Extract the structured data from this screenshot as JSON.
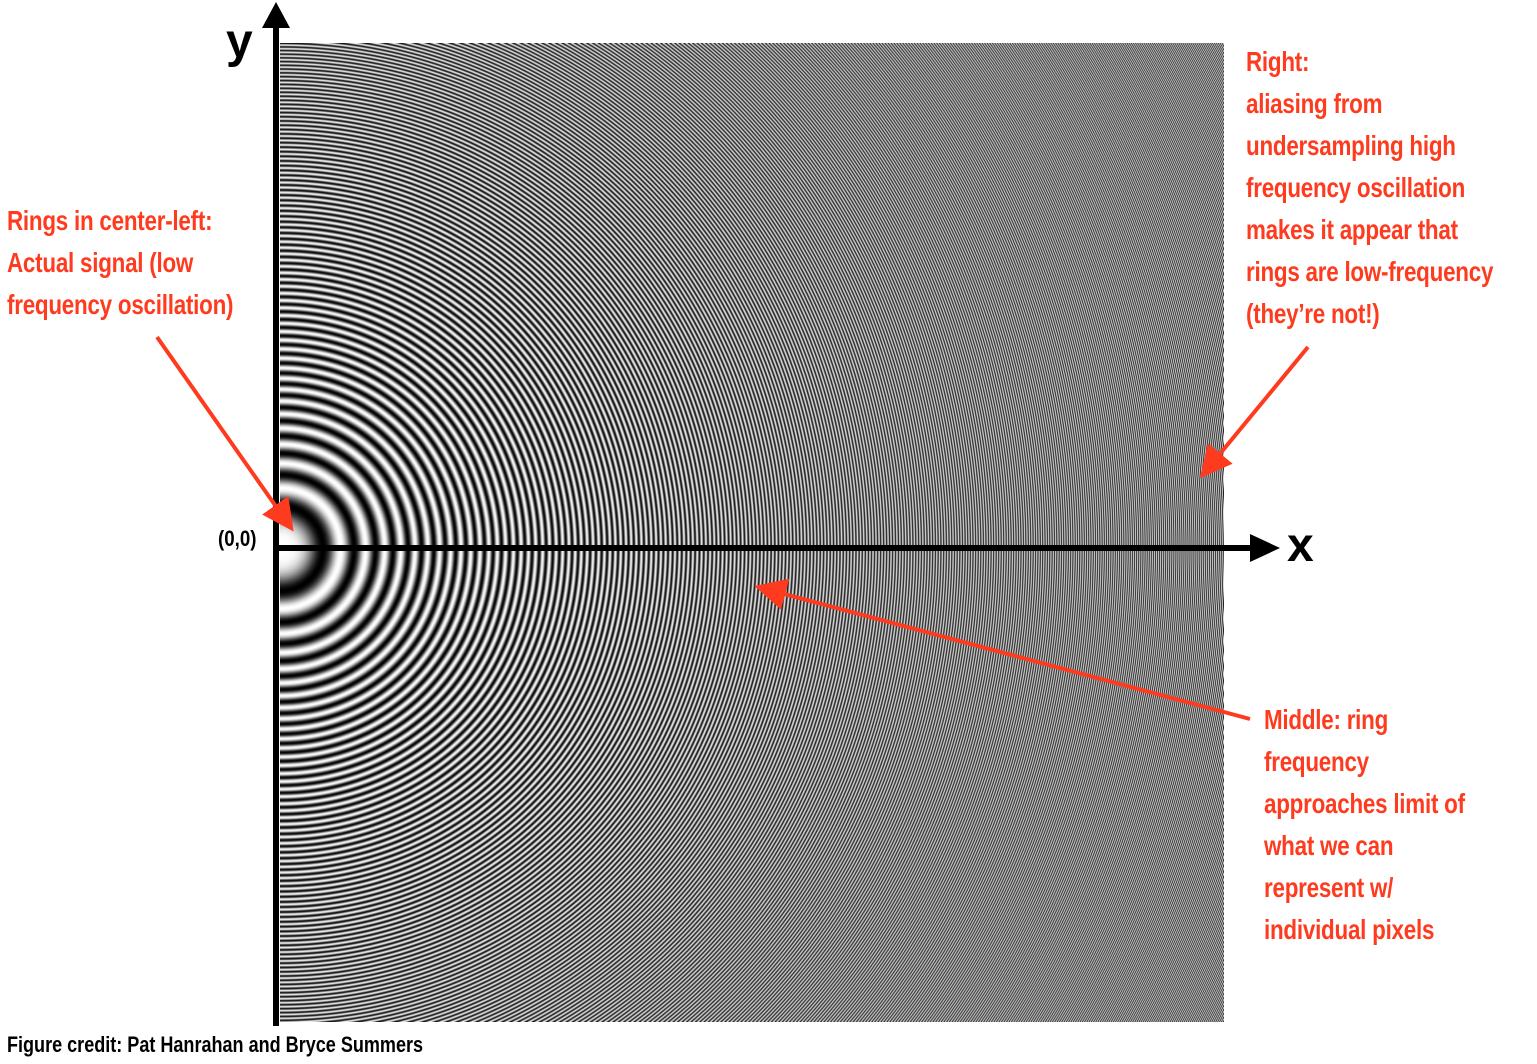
{
  "axes": {
    "x_label": "x",
    "y_label": "y",
    "origin_label": "(0,0)"
  },
  "annotations": {
    "left": {
      "lines": [
        "Rings in center-left:",
        "Actual signal (low",
        "frequency oscillation)"
      ]
    },
    "right": {
      "lines": [
        "Right:",
        "aliasing from",
        "undersampling high",
        "frequency oscillation",
        "makes it appear that",
        "rings are low-frequency",
        "(they’re not!)"
      ]
    },
    "middle": {
      "lines": [
        "Middle: ring",
        "frequency",
        "approaches limit of",
        "what we can",
        "represent w/",
        "individual pixels"
      ]
    }
  },
  "credit": "Figure credit: Pat Hanrahan and Bryce Summers",
  "colors": {
    "annotation": "#ff3b1f",
    "axis": "#000000",
    "background": "#ffffff"
  }
}
